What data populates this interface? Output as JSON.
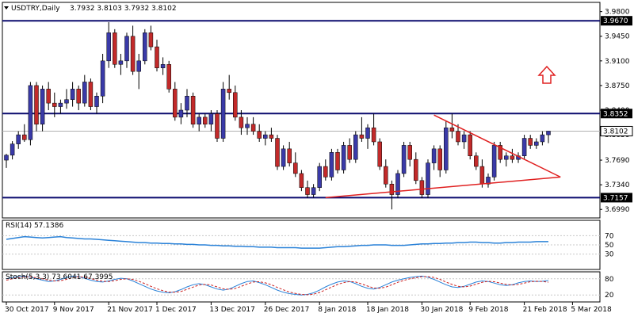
{
  "header": {
    "symbol_label": "USDTRY,Daily",
    "ohlc_label": "3.7932 3.8103 3.7932 3.8102"
  },
  "colors": {
    "bull": "#3a3aa8",
    "bear": "#c22a2a",
    "level_line": "#0b0b6e",
    "trendline": "#e02020",
    "rsi_line": "#2a82d8",
    "stoch_main": "#2a82d8",
    "stoch_signal": "#cc2222",
    "grid": "#c8c8c8",
    "arrow": "#e02020"
  },
  "icons": [
    "dropdown-triangle-icon",
    "up-arrow-icon"
  ],
  "chart_data": {
    "type": "candlestick",
    "price_axis": {
      "ticks": [
        "3.9800",
        "3.9450",
        "3.9100",
        "3.8750",
        "3.8400",
        "3.8050",
        "3.7690",
        "3.7340",
        "3.6990"
      ],
      "range": [
        3.688,
        3.992
      ]
    },
    "levels": [
      {
        "value": 3.967,
        "label": "3.9670"
      },
      {
        "value": 3.8352,
        "label": "3.8352"
      },
      {
        "value": 3.7157,
        "label": "3.7157"
      }
    ],
    "current_price": {
      "value": 3.8102,
      "label": "3.8102"
    },
    "candles": [
      [
        3.769,
        3.778,
        3.758,
        3.776
      ],
      [
        3.776,
        3.796,
        3.77,
        3.792
      ],
      [
        3.792,
        3.81,
        3.785,
        3.805
      ],
      [
        3.805,
        3.82,
        3.795,
        3.798
      ],
      [
        3.798,
        3.88,
        3.79,
        3.875
      ],
      [
        3.875,
        3.88,
        3.81,
        3.82
      ],
      [
        3.82,
        3.875,
        3.81,
        3.87
      ],
      [
        3.87,
        3.88,
        3.84,
        3.85
      ],
      [
        3.85,
        3.865,
        3.83,
        3.845
      ],
      [
        3.845,
        3.855,
        3.835,
        3.85
      ],
      [
        3.85,
        3.87,
        3.842,
        3.855
      ],
      [
        3.855,
        3.88,
        3.845,
        3.87
      ],
      [
        3.87,
        3.875,
        3.84,
        3.85
      ],
      [
        3.85,
        3.89,
        3.845,
        3.88
      ],
      [
        3.88,
        3.885,
        3.84,
        3.845
      ],
      [
        3.845,
        3.865,
        3.835,
        3.86
      ],
      [
        3.86,
        3.92,
        3.85,
        3.91
      ],
      [
        3.91,
        3.965,
        3.9,
        3.95
      ],
      [
        3.95,
        3.955,
        3.9,
        3.905
      ],
      [
        3.905,
        3.92,
        3.89,
        3.91
      ],
      [
        3.91,
        3.95,
        3.9,
        3.945
      ],
      [
        3.945,
        3.96,
        3.89,
        3.895
      ],
      [
        3.895,
        3.92,
        3.87,
        3.91
      ],
      [
        3.91,
        3.955,
        3.905,
        3.95
      ],
      [
        3.95,
        3.96,
        3.925,
        3.93
      ],
      [
        3.93,
        3.94,
        3.895,
        3.9
      ],
      [
        3.9,
        3.915,
        3.89,
        3.905
      ],
      [
        3.905,
        3.91,
        3.865,
        3.87
      ],
      [
        3.87,
        3.88,
        3.825,
        3.83
      ],
      [
        3.83,
        3.85,
        3.82,
        3.84
      ],
      [
        3.84,
        3.87,
        3.83,
        3.86
      ],
      [
        3.86,
        3.865,
        3.815,
        3.82
      ],
      [
        3.82,
        3.835,
        3.81,
        3.83
      ],
      [
        3.83,
        3.835,
        3.815,
        3.82
      ],
      [
        3.82,
        3.84,
        3.81,
        3.835
      ],
      [
        3.835,
        3.84,
        3.795,
        3.8
      ],
      [
        3.8,
        3.88,
        3.795,
        3.87
      ],
      [
        3.87,
        3.89,
        3.855,
        3.865
      ],
      [
        3.865,
        3.875,
        3.825,
        3.83
      ],
      [
        3.83,
        3.84,
        3.805,
        3.815
      ],
      [
        3.815,
        3.83,
        3.805,
        3.82
      ],
      [
        3.82,
        3.83,
        3.805,
        3.81
      ],
      [
        3.81,
        3.82,
        3.795,
        3.8
      ],
      [
        3.8,
        3.81,
        3.79,
        3.805
      ],
      [
        3.805,
        3.815,
        3.795,
        3.8
      ],
      [
        3.8,
        3.805,
        3.755,
        3.76
      ],
      [
        3.76,
        3.79,
        3.755,
        3.785
      ],
      [
        3.785,
        3.795,
        3.76,
        3.765
      ],
      [
        3.765,
        3.78,
        3.745,
        3.75
      ],
      [
        3.75,
        3.755,
        3.725,
        3.73
      ],
      [
        3.73,
        3.74,
        3.715,
        3.72
      ],
      [
        3.72,
        3.735,
        3.716,
        3.73
      ],
      [
        3.73,
        3.765,
        3.725,
        3.76
      ],
      [
        3.76,
        3.77,
        3.74,
        3.745
      ],
      [
        3.745,
        3.785,
        3.74,
        3.78
      ],
      [
        3.78,
        3.785,
        3.75,
        3.755
      ],
      [
        3.755,
        3.795,
        3.75,
        3.79
      ],
      [
        3.79,
        3.8,
        3.765,
        3.77
      ],
      [
        3.77,
        3.81,
        3.765,
        3.805
      ],
      [
        3.805,
        3.83,
        3.795,
        3.8
      ],
      [
        3.8,
        3.82,
        3.785,
        3.815
      ],
      [
        3.815,
        3.835,
        3.79,
        3.795
      ],
      [
        3.795,
        3.8,
        3.755,
        3.76
      ],
      [
        3.76,
        3.77,
        3.73,
        3.735
      ],
      [
        3.735,
        3.74,
        3.699,
        3.72
      ],
      [
        3.72,
        3.755,
        3.715,
        3.75
      ],
      [
        3.75,
        3.795,
        3.745,
        3.79
      ],
      [
        3.79,
        3.795,
        3.76,
        3.77
      ],
      [
        3.77,
        3.78,
        3.735,
        3.74
      ],
      [
        3.74,
        3.745,
        3.715,
        3.72
      ],
      [
        3.72,
        3.77,
        3.715,
        3.765
      ],
      [
        3.765,
        3.79,
        3.755,
        3.785
      ],
      [
        3.785,
        3.79,
        3.745,
        3.755
      ],
      [
        3.755,
        3.825,
        3.75,
        3.815
      ],
      [
        3.815,
        3.835,
        3.8,
        3.81
      ],
      [
        3.81,
        3.82,
        3.79,
        3.795
      ],
      [
        3.795,
        3.81,
        3.785,
        3.805
      ],
      [
        3.805,
        3.81,
        3.77,
        3.775
      ],
      [
        3.775,
        3.78,
        3.755,
        3.76
      ],
      [
        3.76,
        3.77,
        3.73,
        3.735
      ],
      [
        3.735,
        3.75,
        3.73,
        3.745
      ],
      [
        3.745,
        3.795,
        3.74,
        3.79
      ],
      [
        3.79,
        3.795,
        3.765,
        3.77
      ],
      [
        3.77,
        3.78,
        3.76,
        3.775
      ],
      [
        3.775,
        3.785,
        3.765,
        3.77
      ],
      [
        3.77,
        3.78,
        3.765,
        3.775
      ],
      [
        3.775,
        3.805,
        3.77,
        3.8
      ],
      [
        3.8,
        3.805,
        3.785,
        3.79
      ],
      [
        3.79,
        3.8,
        3.785,
        3.795
      ],
      [
        3.795,
        3.81,
        3.79,
        3.805
      ],
      [
        3.805,
        3.8103,
        3.7932,
        3.8102
      ]
    ],
    "trendlines": [
      {
        "from": [
          71,
          3.833
        ],
        "to": [
          92,
          3.745
        ]
      },
      {
        "from": [
          53,
          3.7157
        ],
        "to": [
          92,
          3.745
        ]
      }
    ],
    "rsi": {
      "label": "RSI(14) 57.1386",
      "range": [
        0,
        100
      ],
      "ticks": [
        "70",
        "50",
        "30"
      ],
      "levels": [
        70,
        50,
        30
      ],
      "values": [
        62,
        64,
        66,
        68,
        67,
        66,
        65,
        66,
        67,
        68,
        66,
        65,
        64,
        63,
        63,
        62,
        61,
        60,
        59,
        58,
        57,
        56,
        55,
        55,
        54,
        54,
        53,
        53,
        52,
        52,
        51,
        51,
        50,
        50,
        49,
        49,
        48,
        48,
        47,
        47,
        46,
        46,
        45,
        45,
        45,
        44,
        44,
        44,
        44,
        43,
        43,
        43,
        43,
        44,
        45,
        46,
        46,
        47,
        48,
        49,
        49,
        50,
        50,
        50,
        49,
        49,
        49,
        50,
        51,
        52,
        52,
        53,
        53,
        54,
        54,
        55,
        55,
        56,
        56,
        55,
        55,
        54,
        54,
        55,
        55,
        56,
        56,
        56,
        57,
        57,
        57
      ]
    },
    "stoch": {
      "label": "Stoch(5,3,3) 73.6041 67.3995",
      "range": [
        0,
        100
      ],
      "ticks": [
        "80",
        "20"
      ],
      "levels": [
        80,
        20
      ],
      "main": [
        80,
        85,
        88,
        90,
        86,
        80,
        75,
        70,
        72,
        78,
        85,
        90,
        88,
        82,
        75,
        70,
        68,
        72,
        78,
        82,
        80,
        72,
        62,
        52,
        42,
        35,
        30,
        28,
        32,
        40,
        50,
        58,
        62,
        58,
        50,
        42,
        38,
        42,
        52,
        62,
        70,
        72,
        66,
        58,
        48,
        38,
        30,
        25,
        22,
        20,
        22,
        28,
        38,
        50,
        60,
        68,
        72,
        70,
        62,
        52,
        45,
        42,
        48,
        58,
        68,
        75,
        80,
        85,
        88,
        90,
        86,
        78,
        68,
        58,
        50,
        48,
        52,
        60,
        68,
        72,
        70,
        64,
        58,
        55,
        58,
        65,
        70,
        72,
        70,
        71,
        73.6
      ],
      "signal": [
        75,
        80,
        84,
        87,
        87,
        84,
        80,
        75,
        72,
        73,
        78,
        84,
        88,
        86,
        81,
        75,
        71,
        70,
        73,
        78,
        80,
        78,
        71,
        62,
        52,
        43,
        36,
        31,
        30,
        33,
        41,
        49,
        57,
        59,
        57,
        50,
        43,
        41,
        44,
        52,
        61,
        68,
        69,
        65,
        58,
        48,
        39,
        31,
        26,
        22,
        21,
        23,
        29,
        39,
        49,
        59,
        66,
        70,
        68,
        61,
        53,
        46,
        45,
        49,
        58,
        67,
        74,
        80,
        84,
        88,
        88,
        85,
        78,
        68,
        59,
        52,
        50,
        53,
        60,
        67,
        71,
        69,
        64,
        59,
        57,
        59,
        64,
        69,
        71,
        70,
        67.4
      ]
    },
    "x_axis": {
      "labels": [
        "30 Oct 2017",
        "9 Nov 2017",
        "21 Nov 2017",
        "1 Dec 2017",
        "13 Dec 2017",
        "26 Dec 2017",
        "8 Jan 2018",
        "18 Jan 2018",
        "30 Jan 2018",
        "9 Feb 2018",
        "21 Feb 2018",
        "5 Mar 2018"
      ],
      "label_bars": [
        0,
        8,
        17,
        25,
        34,
        43,
        52,
        60,
        69,
        77,
        86,
        94
      ]
    }
  }
}
